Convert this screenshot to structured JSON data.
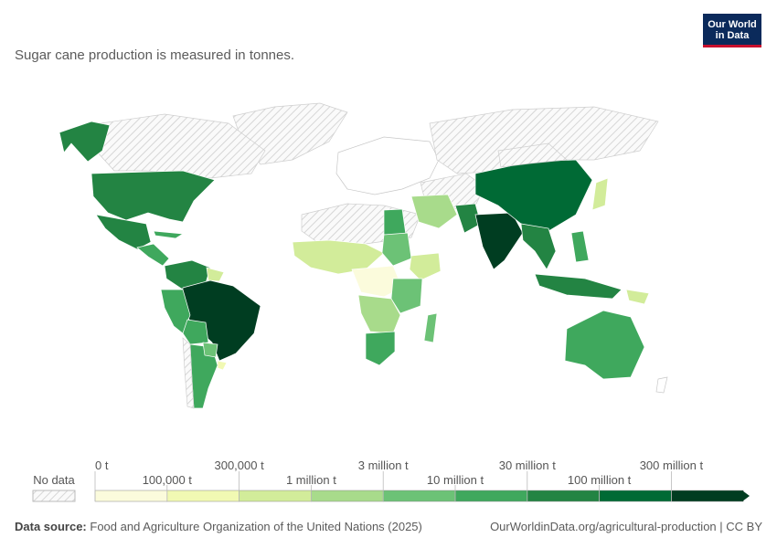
{
  "subtitle": "Sugar cane production is measured in tonnes.",
  "logo": {
    "line1": "Our World",
    "line2": "in Data"
  },
  "legend": {
    "no_data": "No data",
    "top_labels": [
      "0 t",
      "300,000 t",
      "3 million t",
      "30 million t",
      "300 million t"
    ],
    "bottom_labels": [
      "100,000 t",
      "1 million t",
      "10 million t",
      "100 million t"
    ],
    "colors": [
      "#fbfbdc",
      "#f1f9b3",
      "#d2ec9a",
      "#a8db8b",
      "#6cc276",
      "#3fa85d",
      "#238443",
      "#006a35",
      "#003d21"
    ]
  },
  "footer": {
    "source_label": "Data source:",
    "source_text": "Food and Agriculture Organization of the United Nations (2025)",
    "url": "OurWorldinData.org/agricultural-production | CC BY"
  }
}
